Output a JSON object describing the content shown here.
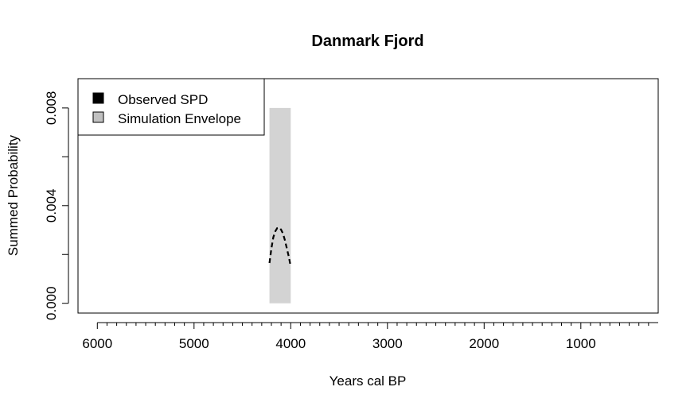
{
  "chart_data": {
    "type": "area",
    "title": "Danmark Fjord",
    "xlabel": "Years cal BP",
    "ylabel": "Summed Probability",
    "xlim": [
      6200,
      200
    ],
    "ylim": [
      -0.0004,
      0.0092
    ],
    "x_ticks_major": [
      6000,
      5000,
      4000,
      3000,
      2000,
      1000
    ],
    "x_tick_labels": [
      "6000",
      "5000",
      "4000",
      "3000",
      "2000",
      "1000"
    ],
    "x_ticks_minor_step": 100,
    "y_ticks": [
      0.0,
      0.002,
      0.004,
      0.006,
      0.008
    ],
    "y_tick_labels": [
      "0.000",
      "",
      "0.004",
      "",
      "0.008"
    ],
    "legend": {
      "position": "top-left",
      "entries": [
        {
          "label": "Observed SPD",
          "color": "#000000"
        },
        {
          "label": "Simulation Envelope",
          "color": "#c0c0c0"
        }
      ]
    },
    "envelope": {
      "name": "Simulation Envelope",
      "color": "#d3d3d3",
      "x_from": 4220,
      "x_to": 4000,
      "lo": 0.0,
      "hi": 0.008
    },
    "series": [
      {
        "name": "Observed SPD",
        "style": "dashed",
        "color": "#000000",
        "x": [
          4220,
          4200,
          4180,
          4160,
          4140,
          4120,
          4100,
          4080,
          4060,
          4040,
          4020,
          4000
        ],
        "y": [
          0.00165,
          0.00225,
          0.0027,
          0.00295,
          0.00308,
          0.0031,
          0.00302,
          0.00285,
          0.00258,
          0.00225,
          0.0019,
          0.0015
        ]
      }
    ],
    "grid": false
  }
}
